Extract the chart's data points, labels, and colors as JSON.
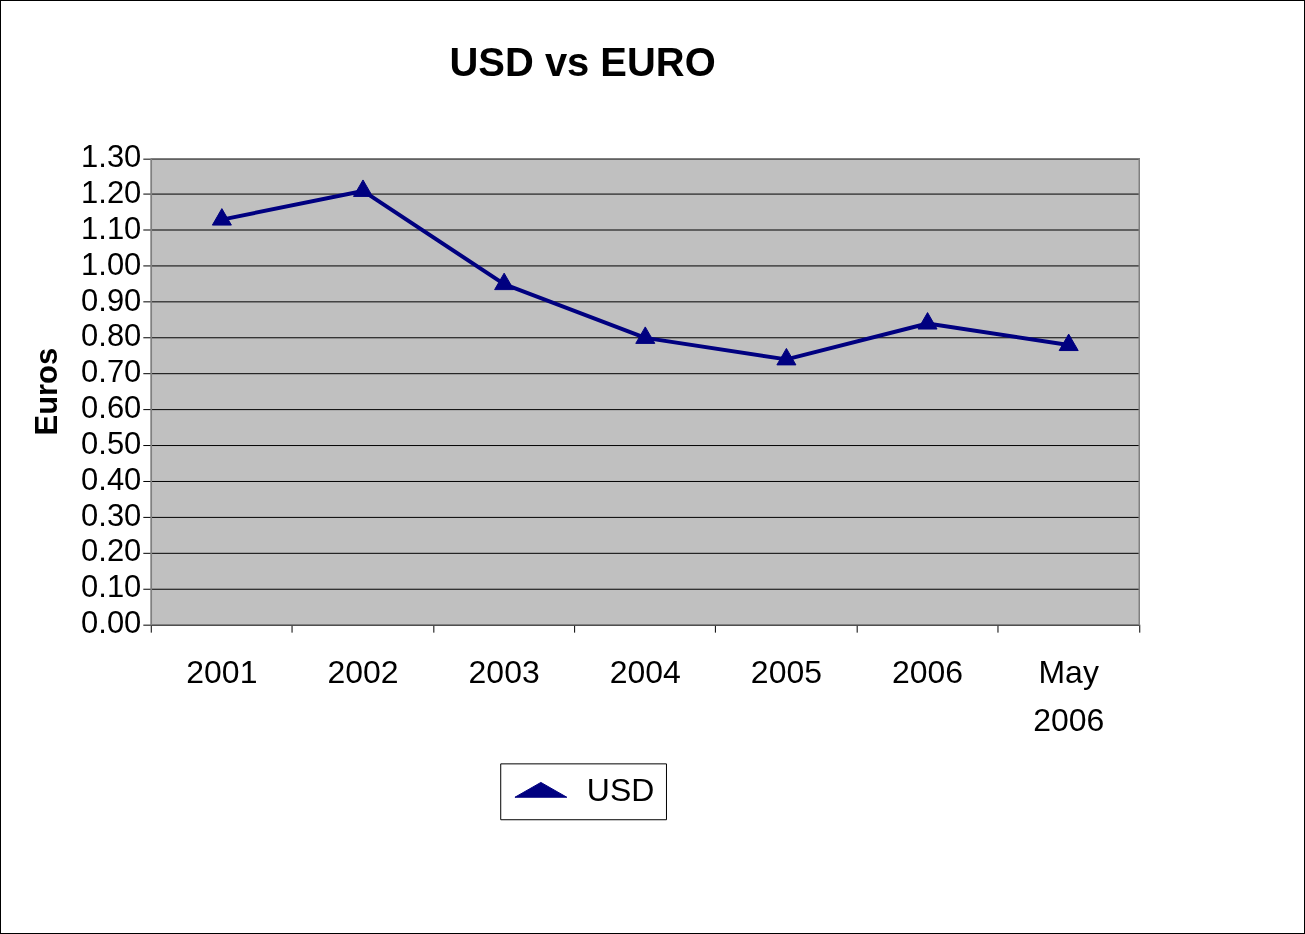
{
  "chart_data": {
    "type": "line",
    "title": "USD vs EURO",
    "ylabel": "Euros",
    "categories": [
      "2001",
      "2002",
      "2003",
      "2004",
      "2005",
      "2006",
      "May 2006"
    ],
    "series": [
      {
        "name": "USD",
        "color": "#000080",
        "values": [
          1.13,
          1.21,
          0.95,
          0.8,
          0.74,
          0.84,
          0.78
        ]
      }
    ],
    "ylim": [
      0,
      1.3
    ],
    "yticks": [
      {
        "value": 0,
        "label": "0.00"
      },
      {
        "value": 0.1,
        "label": "0.10"
      },
      {
        "value": 0.2,
        "label": "0.20"
      },
      {
        "value": 0.3,
        "label": "0.30"
      },
      {
        "value": 0.4,
        "label": "0.40"
      },
      {
        "value": 0.5,
        "label": "0.50"
      },
      {
        "value": 0.6,
        "label": "0.60"
      },
      {
        "value": 0.7,
        "label": "0.70"
      },
      {
        "value": 0.8,
        "label": "0.80"
      },
      {
        "value": 0.9,
        "label": "0.90"
      },
      {
        "value": 1.0,
        "label": "1.00"
      },
      {
        "value": 1.1,
        "label": "1.10"
      },
      {
        "value": 1.2,
        "label": "1.20"
      },
      {
        "value": 1.3,
        "label": "1.30"
      }
    ],
    "grid": "y",
    "legend": "bottom",
    "marker": "triangle",
    "line_style": "solid"
  }
}
